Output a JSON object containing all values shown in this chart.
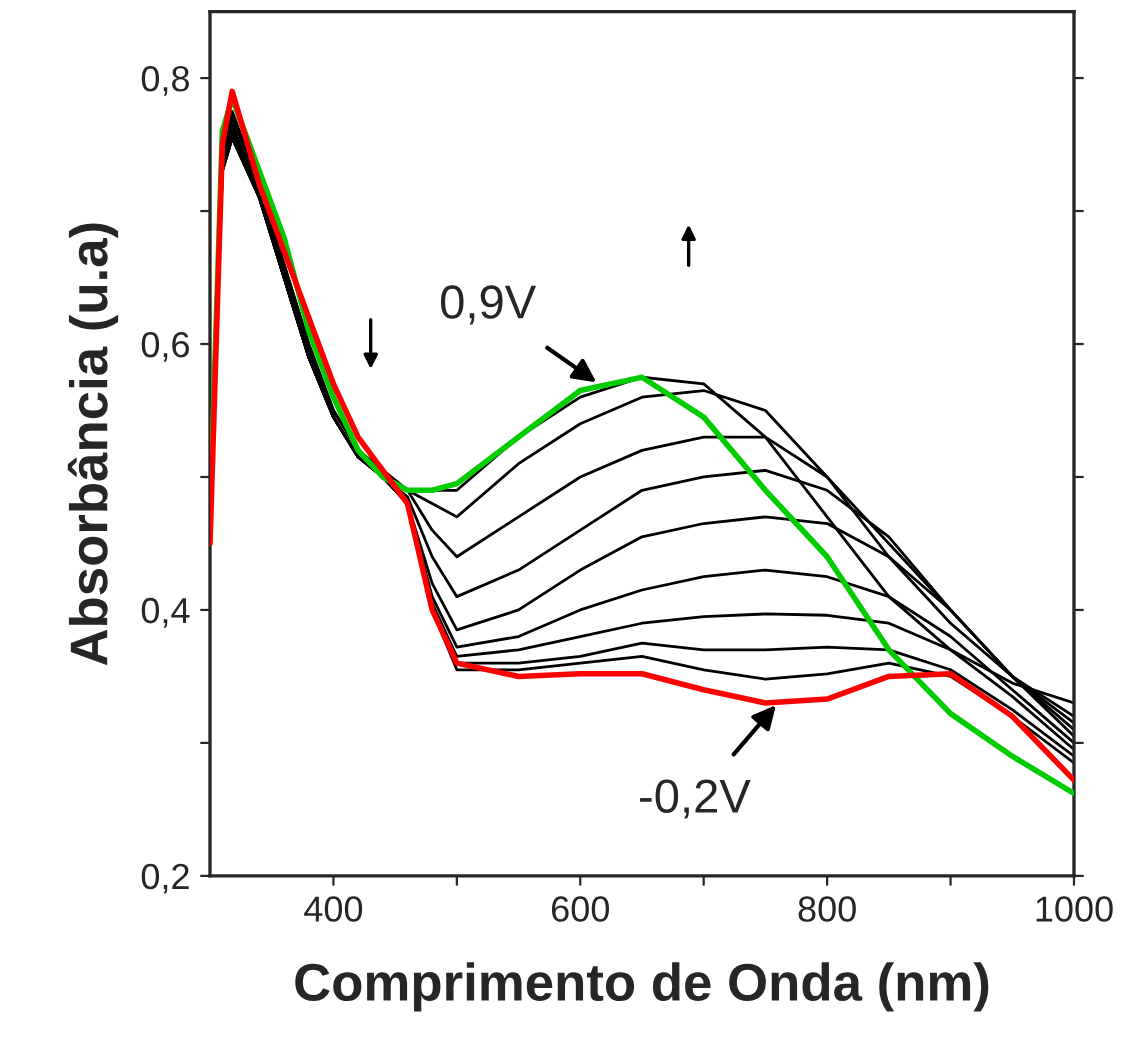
{
  "chart_data": {
    "type": "line",
    "xlabel": "Comprimento de Onda (nm)",
    "ylabel": "Absorbância (u.a)",
    "x": [
      300,
      310,
      318,
      340,
      360,
      380,
      400,
      420,
      440,
      460,
      480,
      500,
      550,
      600,
      650,
      700,
      750,
      800,
      850,
      900,
      950,
      1000
    ],
    "series": [
      {
        "color": "#000000",
        "values": [
          0.46,
          0.74,
          0.775,
          0.72,
          0.66,
          0.6,
          0.55,
          0.52,
          0.505,
          0.49,
          0.49,
          0.49,
          0.53,
          0.56,
          0.575,
          0.57,
          0.53,
          0.47,
          0.41,
          0.37,
          0.345,
          0.33
        ]
      },
      {
        "color": "#000000",
        "values": [
          0.46,
          0.74,
          0.77,
          0.72,
          0.66,
          0.6,
          0.55,
          0.52,
          0.505,
          0.49,
          0.48,
          0.47,
          0.51,
          0.54,
          0.56,
          0.565,
          0.55,
          0.5,
          0.44,
          0.39,
          0.35,
          0.32
        ]
      },
      {
        "color": "#000000",
        "values": [
          0.46,
          0.735,
          0.765,
          0.715,
          0.655,
          0.595,
          0.55,
          0.52,
          0.505,
          0.49,
          0.46,
          0.44,
          0.47,
          0.5,
          0.52,
          0.53,
          0.53,
          0.5,
          0.45,
          0.4,
          0.35,
          0.315
        ]
      },
      {
        "color": "#000000",
        "values": [
          0.46,
          0.735,
          0.76,
          0.715,
          0.655,
          0.595,
          0.545,
          0.515,
          0.5,
          0.485,
          0.44,
          0.41,
          0.43,
          0.46,
          0.49,
          0.5,
          0.505,
          0.49,
          0.455,
          0.4,
          0.35,
          0.31
        ]
      },
      {
        "color": "#000000",
        "values": [
          0.46,
          0.73,
          0.76,
          0.71,
          0.65,
          0.59,
          0.545,
          0.515,
          0.5,
          0.48,
          0.42,
          0.385,
          0.4,
          0.43,
          0.455,
          0.465,
          0.47,
          0.465,
          0.44,
          0.4,
          0.35,
          0.305
        ]
      },
      {
        "color": "#000000",
        "values": [
          0.46,
          0.73,
          0.755,
          0.71,
          0.65,
          0.59,
          0.545,
          0.515,
          0.5,
          0.48,
          0.41,
          0.372,
          0.38,
          0.4,
          0.415,
          0.425,
          0.43,
          0.425,
          0.41,
          0.38,
          0.34,
          0.3
        ]
      },
      {
        "color": "#000000",
        "values": [
          0.46,
          0.73,
          0.755,
          0.71,
          0.65,
          0.59,
          0.545,
          0.515,
          0.5,
          0.48,
          0.405,
          0.365,
          0.37,
          0.38,
          0.39,
          0.395,
          0.397,
          0.396,
          0.39,
          0.37,
          0.335,
          0.295
        ]
      },
      {
        "color": "#000000",
        "values": [
          0.46,
          0.73,
          0.755,
          0.71,
          0.65,
          0.59,
          0.545,
          0.515,
          0.5,
          0.48,
          0.4,
          0.36,
          0.36,
          0.365,
          0.375,
          0.37,
          0.37,
          0.372,
          0.37,
          0.355,
          0.325,
          0.29
        ]
      },
      {
        "color": "#000000",
        "values": [
          0.46,
          0.73,
          0.76,
          0.71,
          0.65,
          0.59,
          0.545,
          0.515,
          0.5,
          0.48,
          0.4,
          0.355,
          0.355,
          0.36,
          0.365,
          0.355,
          0.348,
          0.352,
          0.36,
          0.35,
          0.32,
          0.285
        ]
      },
      {
        "color": "#00cc00",
        "values": [
          0.47,
          0.76,
          0.785,
          0.73,
          0.68,
          0.61,
          0.56,
          0.52,
          0.5,
          0.49,
          0.49,
          0.495,
          0.53,
          0.565,
          0.575,
          0.545,
          0.49,
          0.44,
          0.37,
          0.322,
          0.29,
          0.262
        ]
      },
      {
        "color": "#ff0000",
        "values": [
          0.45,
          0.75,
          0.79,
          0.72,
          0.67,
          0.62,
          0.57,
          0.53,
          0.505,
          0.48,
          0.4,
          0.36,
          0.35,
          0.352,
          0.352,
          0.34,
          0.33,
          0.333,
          0.35,
          0.352,
          0.32,
          0.272
        ]
      }
    ],
    "annotations": [
      {
        "text": "0,9V",
        "x": 615,
        "y": 0.57
      },
      {
        "text": "-0,2V",
        "x": 760,
        "y": 0.33
      }
    ],
    "xlim": [
      300,
      1000
    ],
    "xticks": [
      400,
      {
        "value": 500,
        "label": null
      },
      600,
      {
        "value": 700,
        "label": null
      },
      800,
      {
        "value": 900,
        "label": null
      },
      1000
    ],
    "ylim": [
      0.2,
      0.85
    ],
    "yticks": [
      {
        "value": 0.2,
        "label": "0,2"
      },
      {
        "value": 0.3,
        "label": null
      },
      {
        "value": 0.4,
        "label": "0,4"
      },
      {
        "value": 0.5,
        "label": null
      },
      {
        "value": 0.6,
        "label": "0,6"
      },
      {
        "value": 0.7,
        "label": null
      },
      {
        "value": 0.8,
        "label": "0,8"
      }
    ],
    "grid": false,
    "legend": false,
    "marker": "none",
    "line_style": "solid"
  }
}
